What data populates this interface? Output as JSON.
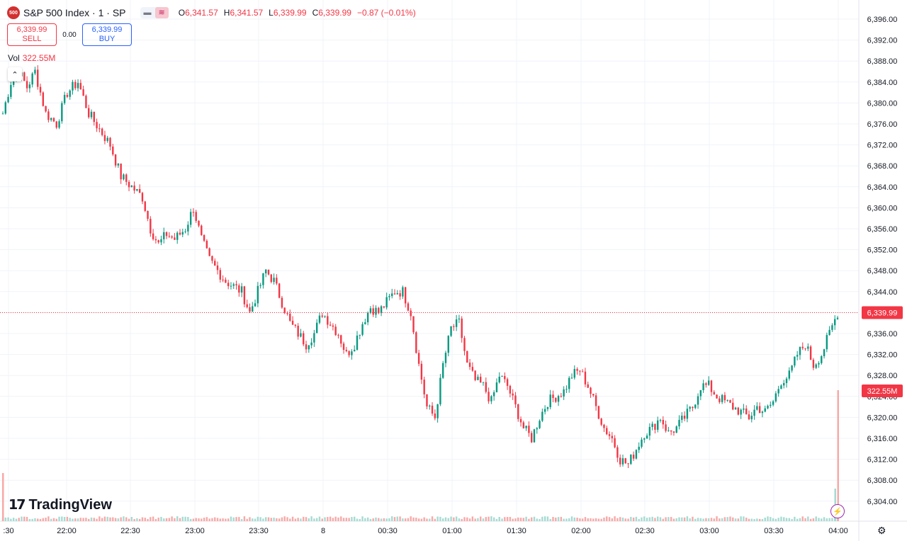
{
  "header": {
    "badge": "500",
    "title": "S&P 500 Index · 1 · SP",
    "o_key": "O",
    "o_val": "6,341.57",
    "h_key": "H",
    "h_val": "6,341.57",
    "l_key": "L",
    "l_val": "6,339.99",
    "c_key": "C",
    "c_val": "6,339.99",
    "change": "−0.87 (−0.01%)"
  },
  "trade": {
    "sell_price": "6,339.99",
    "sell_label": "SELL",
    "spread": "0.00",
    "buy_price": "6,339.99",
    "buy_label": "BUY"
  },
  "volume": {
    "label": "Vol",
    "value": "322.55M"
  },
  "brand": {
    "logo_text": "TradingView"
  },
  "icons": {
    "collapse": "chevron-up-icon",
    "flash": "lightning-icon",
    "settings": "gear-icon",
    "logo": "tradingview-logo-icon"
  },
  "colors": {
    "up": "#089981",
    "down": "#f23645",
    "up_vol": "#a6dbd2",
    "down_vol": "#f7a9a7",
    "grid": "#f0f3fa"
  },
  "chart_data": {
    "type": "candlestick",
    "ylim": [
      6302,
      6398
    ],
    "y_ticks": [
      "6,396.00",
      "6,392.00",
      "6,388.00",
      "6,384.00",
      "6,380.00",
      "6,376.00",
      "6,372.00",
      "6,368.00",
      "6,364.00",
      "6,360.00",
      "6,356.00",
      "6,352.00",
      "6,348.00",
      "6,344.00",
      "6,340.00",
      "6,336.00",
      "6,332.00",
      "6,328.00",
      "6,324.00",
      "6,320.00",
      "6,316.00",
      "6,312.00",
      "6,308.00",
      "6,304.00"
    ],
    "x_ticks": [
      ":30",
      "22:00",
      "22:30",
      "23:00",
      "23:30",
      "8",
      "00:30",
      "01:00",
      "01:30",
      "02:00",
      "02:30",
      "03:00",
      "03:30",
      "04:00"
    ],
    "last_price": 6339.99,
    "last_price_label": "6,339.99",
    "volume_label": "322.55M",
    "close_path": [
      [
        0,
        6378
      ],
      [
        3,
        6384
      ],
      [
        6,
        6386
      ],
      [
        9,
        6383
      ],
      [
        12,
        6386
      ],
      [
        16,
        6378
      ],
      [
        20,
        6376
      ],
      [
        24,
        6382
      ],
      [
        28,
        6384
      ],
      [
        32,
        6378
      ],
      [
        36,
        6375
      ],
      [
        40,
        6372
      ],
      [
        44,
        6366
      ],
      [
        48,
        6364
      ],
      [
        52,
        6362
      ],
      [
        55,
        6356
      ],
      [
        58,
        6353
      ],
      [
        61,
        6355
      ],
      [
        64,
        6354
      ],
      [
        68,
        6356
      ],
      [
        71,
        6360
      ],
      [
        74,
        6354
      ],
      [
        77,
        6350
      ],
      [
        80,
        6348
      ],
      [
        83,
        6346
      ],
      [
        86,
        6345
      ],
      [
        89,
        6344
      ],
      [
        92,
        6340
      ],
      [
        95,
        6344
      ],
      [
        98,
        6348
      ],
      [
        101,
        6346
      ],
      [
        104,
        6342
      ],
      [
        107,
        6338
      ],
      [
        110,
        6336
      ],
      [
        113,
        6334
      ],
      [
        116,
        6336
      ],
      [
        119,
        6340
      ],
      [
        122,
        6338
      ],
      [
        125,
        6336
      ],
      [
        128,
        6332
      ],
      [
        131,
        6334
      ],
      [
        134,
        6338
      ],
      [
        137,
        6341
      ],
      [
        140,
        6340
      ],
      [
        143,
        6342
      ],
      [
        146,
        6344
      ],
      [
        149,
        6344
      ],
      [
        152,
        6340
      ],
      [
        155,
        6330
      ],
      [
        158,
        6322
      ],
      [
        161,
        6320
      ],
      [
        164,
        6330
      ],
      [
        167,
        6337
      ],
      [
        170,
        6338
      ],
      [
        173,
        6330
      ],
      [
        176,
        6327
      ],
      [
        179,
        6326
      ],
      [
        182,
        6323
      ],
      [
        185,
        6328
      ],
      [
        188,
        6326
      ],
      [
        191,
        6322
      ],
      [
        194,
        6318
      ],
      [
        197,
        6316
      ],
      [
        200,
        6320
      ],
      [
        203,
        6323
      ],
      [
        206,
        6324
      ],
      [
        209,
        6325
      ],
      [
        212,
        6328
      ],
      [
        215,
        6329
      ],
      [
        218,
        6326
      ],
      [
        221,
        6322
      ],
      [
        224,
        6318
      ],
      [
        227,
        6316
      ],
      [
        230,
        6312
      ],
      [
        233,
        6311
      ],
      [
        236,
        6314
      ],
      [
        239,
        6317
      ],
      [
        242,
        6318
      ],
      [
        245,
        6320
      ],
      [
        248,
        6317
      ],
      [
        251,
        6318
      ],
      [
        254,
        6320
      ],
      [
        257,
        6322
      ],
      [
        260,
        6326
      ],
      [
        263,
        6326
      ],
      [
        266,
        6324
      ],
      [
        269,
        6323
      ],
      [
        272,
        6322
      ],
      [
        275,
        6321
      ],
      [
        278,
        6320
      ],
      [
        281,
        6322
      ],
      [
        284,
        6321
      ],
      [
        287,
        6323
      ],
      [
        290,
        6327
      ],
      [
        293,
        6328
      ],
      [
        296,
        6332
      ],
      [
        299,
        6334
      ],
      [
        302,
        6330
      ],
      [
        305,
        6332
      ],
      [
        308,
        6336
      ],
      [
        311,
        6340
      ]
    ]
  }
}
